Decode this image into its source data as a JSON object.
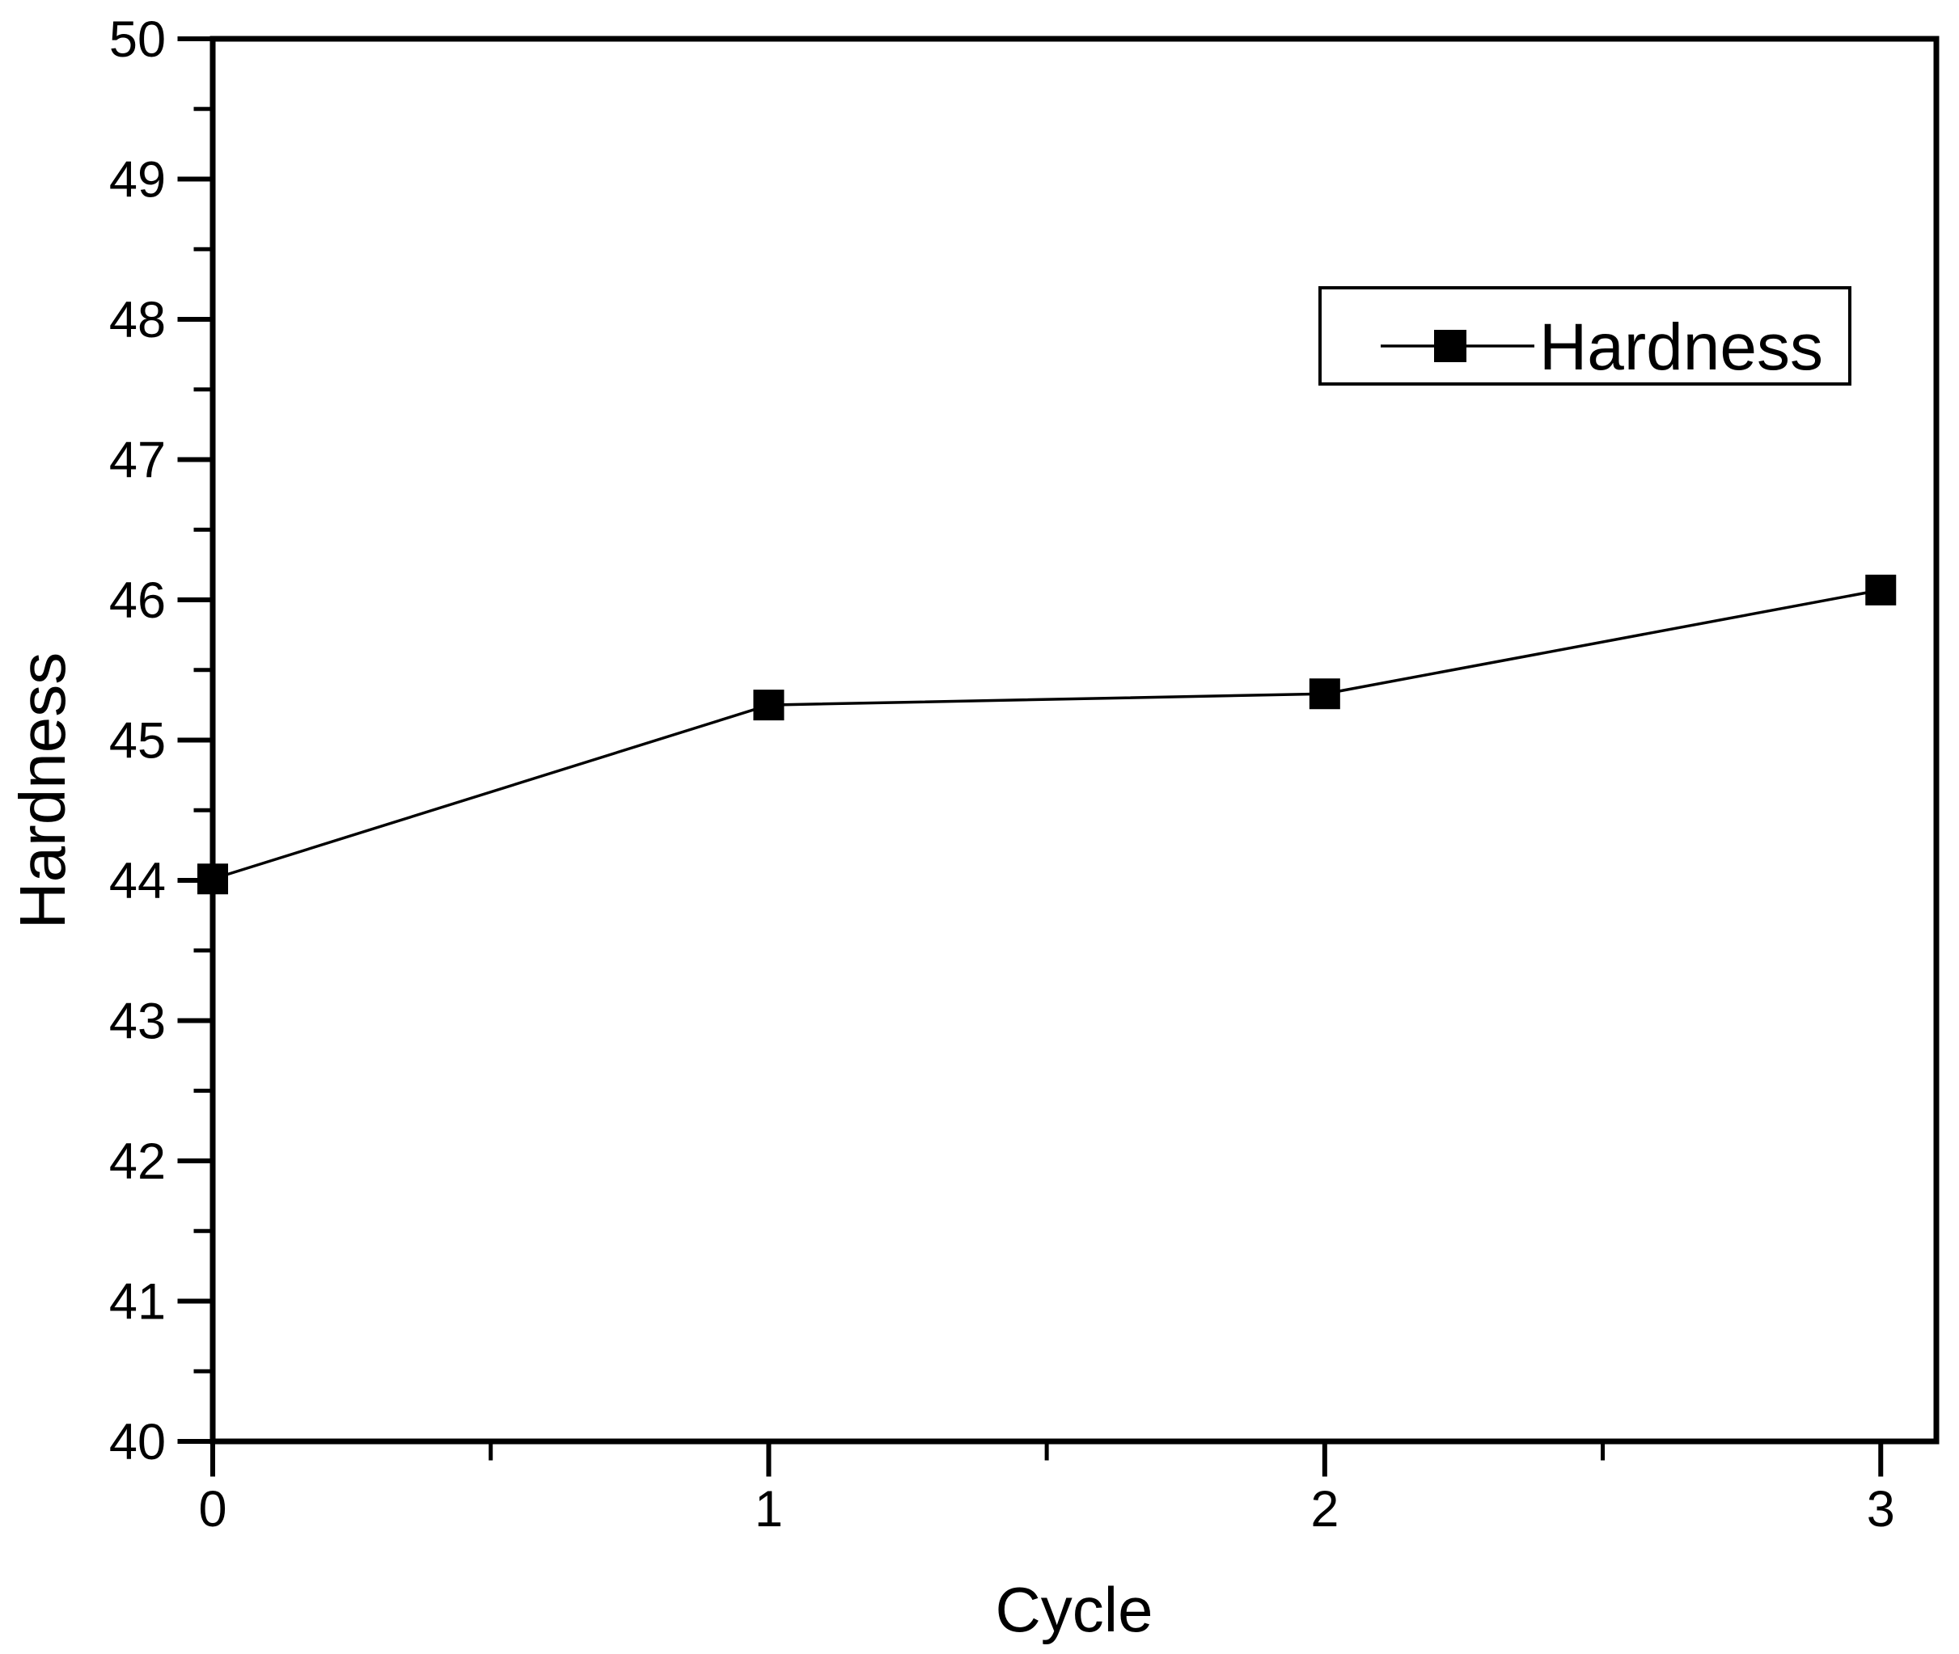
{
  "figure": {
    "background": "#ffffff"
  },
  "chart_data": {
    "type": "line",
    "title": "",
    "xlabel": "Cycle",
    "ylabel": "Hardness",
    "x": [
      0,
      1,
      2,
      3
    ],
    "series": [
      {
        "name": "Hardness",
        "values": [
          44.01,
          45.25,
          45.33,
          46.07
        ],
        "color": "#000000",
        "marker": "filled-square",
        "line_style": "solid"
      }
    ],
    "xlim": [
      0,
      3.1
    ],
    "ylim": [
      40,
      50
    ],
    "x_axis": {
      "major_ticks": [
        0,
        1,
        2,
        3
      ],
      "tick_labels": [
        "0",
        "1",
        "2",
        "3"
      ],
      "minor_ticks": [
        0.5,
        1.5,
        2.5
      ]
    },
    "y_axis": {
      "major_ticks": [
        40,
        41,
        42,
        43,
        44,
        45,
        46,
        47,
        48,
        49,
        50
      ],
      "tick_labels": [
        "40",
        "41",
        "42",
        "43",
        "44",
        "45",
        "46",
        "47",
        "48",
        "49",
        "50"
      ],
      "minor_ticks": [
        40.5,
        41.5,
        42.5,
        43.5,
        44.5,
        45.5,
        46.5,
        47.5,
        48.5,
        49.5
      ]
    },
    "grid": false,
    "legend": {
      "position": "upper-right",
      "entries": [
        {
          "label": "Hardness",
          "marker": "filled-square"
        }
      ]
    },
    "colors": {
      "axis": "#000000",
      "line": "#000000",
      "marker": "#000000",
      "background": "#ffffff"
    }
  }
}
